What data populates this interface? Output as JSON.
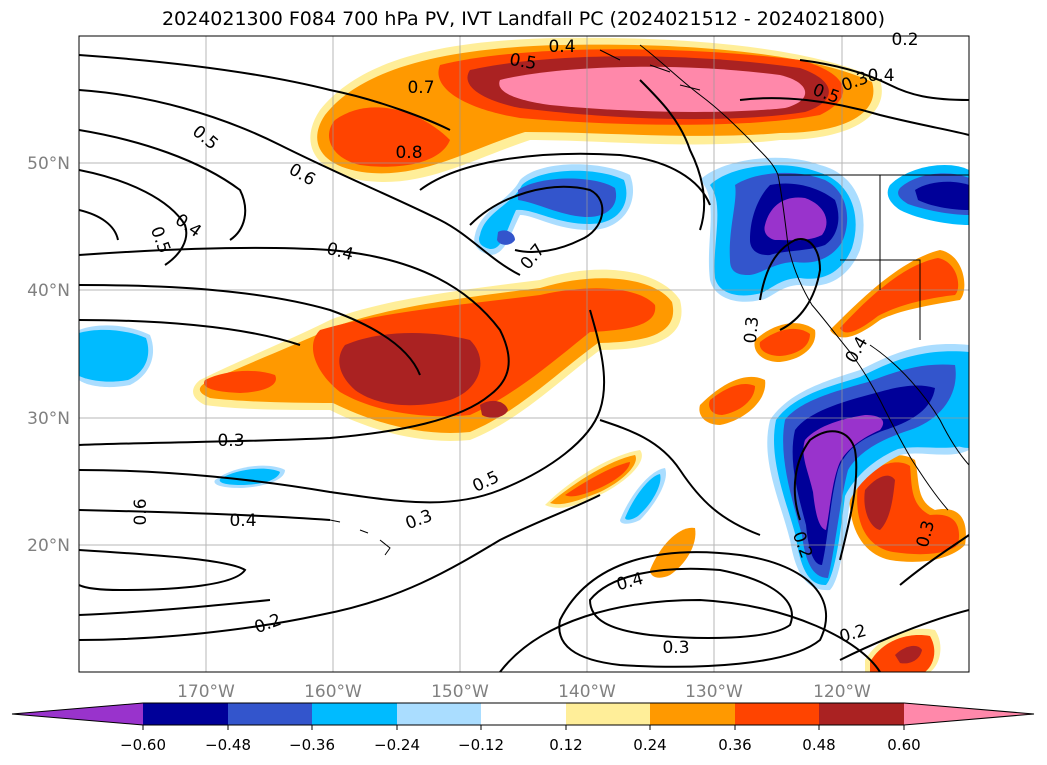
{
  "title": "2024021300 F084 700 hPa PV, IVT Landfall PC (2024021512 - 2024021800)",
  "lat_labels": [
    "50°N",
    "40°N",
    "30°N",
    "20°N"
  ],
  "lon_labels": [
    "170°W",
    "160°W",
    "150°W",
    "140°W",
    "130°W",
    "120°W"
  ],
  "contour_labels": [
    "0.4",
    "0.5",
    "0.7",
    "0.8",
    "0.5",
    "0.6",
    "0.4",
    "0.5",
    "0.4",
    "0.7",
    "0.3",
    "0.4",
    "0.3",
    "0.5",
    "0.6",
    "0.3",
    "0.4",
    "0.2",
    "0.4",
    "0.3",
    "0.2",
    "0.2",
    "0.3",
    "0.4",
    "0.3",
    "0.5",
    "0.2"
  ],
  "colorbar": {
    "tick_labels": [
      "−0.60",
      "−0.48",
      "−0.36",
      "−0.24",
      "−0.12",
      "0.12",
      "0.24",
      "0.36",
      "0.48",
      "0.60"
    ],
    "colors": [
      "#9933cc",
      "#000099",
      "#3355cc",
      "#00bbff",
      "#aaddff",
      "#ffffff",
      "#ffee99",
      "#ff9900",
      "#ff4400",
      "#aa2222",
      "#ff88aa"
    ]
  }
}
